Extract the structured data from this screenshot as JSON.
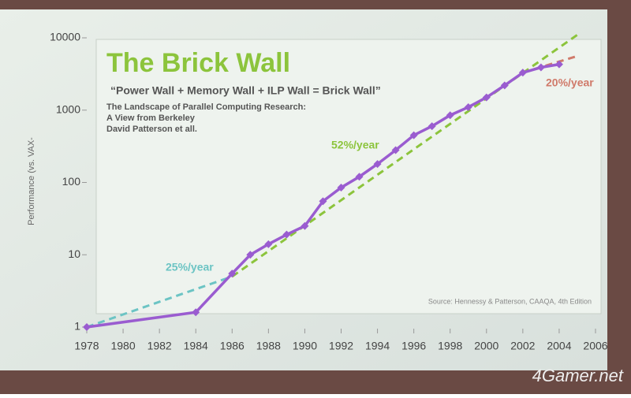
{
  "chart_data": {
    "type": "line",
    "title": "The Brick Wall",
    "subtitle": "“Power Wall + Memory Wall + ILP Wall = Brick Wall”",
    "notes": [
      "The Landscape of Parallel Computing Research:",
      "A View from Berkeley",
      "David Patterson et all."
    ],
    "y_label": "Performance (vs. VAX-",
    "source": "Source: Hennessy & Patterson, CAAQA, 4th Edition",
    "watermark": "4Gamer.net",
    "log_y": true,
    "xlim": [
      1978,
      2006
    ],
    "ylim": [
      1,
      10000
    ],
    "xticks": [
      1978,
      1980,
      1982,
      1984,
      1986,
      1988,
      1990,
      1992,
      1994,
      1996,
      1998,
      2000,
      2002,
      2004,
      2006
    ],
    "yticks": [
      1,
      10,
      100,
      1000,
      10000
    ],
    "series": [
      {
        "color": "#6cc4c4",
        "dashed": true,
        "label": "25%/year",
        "x": [
          1978,
          1986
        ],
        "values": [
          1,
          5
        ]
      },
      {
        "color": "#8cc43c",
        "dashed": true,
        "label": "52%/year",
        "x": [
          1986,
          2005
        ],
        "values": [
          5,
          11000
        ]
      },
      {
        "color": "#d07a6a",
        "dashed": true,
        "label": "20%/year",
        "x": [
          2002,
          2005
        ],
        "values": [
          3300,
          5600
        ]
      },
      {
        "color": "#9a5cd0",
        "dashed": false,
        "markers": true,
        "x": [
          1978,
          1984,
          1986,
          1987,
          1988,
          1989,
          1990,
          1991,
          1992,
          1993,
          1994,
          1995,
          1996,
          1997,
          1998,
          1999,
          2000,
          2001,
          2002,
          2003,
          2004
        ],
        "values": [
          1,
          1.6,
          5.5,
          10,
          14,
          19,
          25,
          55,
          85,
          120,
          180,
          280,
          450,
          600,
          850,
          1100,
          1500,
          2200,
          3300,
          3900,
          4300
        ]
      }
    ]
  }
}
